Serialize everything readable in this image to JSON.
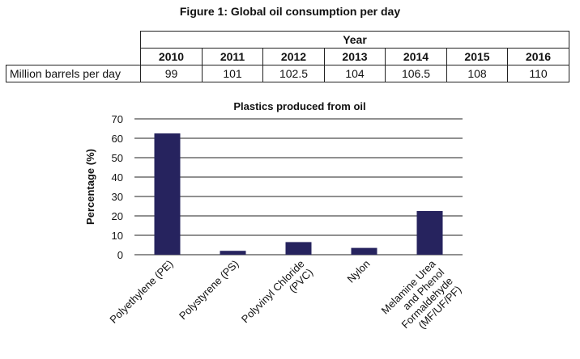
{
  "figure_title": "Figure 1: Global oil consumption per day",
  "table": {
    "group_header": "Year",
    "years": [
      "2010",
      "2011",
      "2012",
      "2013",
      "2014",
      "2015",
      "2016"
    ],
    "row_label": "Million barrels per day",
    "values": [
      "99",
      "101",
      "102.5",
      "104",
      "106.5",
      "108",
      "110"
    ]
  },
  "chart_data": {
    "type": "bar",
    "title": "Plastics produced from oil",
    "xlabel": "",
    "ylabel": "Percentage (%)",
    "ylim": [
      0,
      70
    ],
    "yticks": [
      0,
      10,
      20,
      30,
      40,
      50,
      60,
      70
    ],
    "grid": true,
    "categories": [
      [
        "Polyethylene (PE)"
      ],
      [
        "Polystyrene (PS)"
      ],
      [
        "Polyvinyl Chloride",
        "(PVC)"
      ],
      [
        "Nylon"
      ],
      [
        "Melamine Urea",
        "and Phenol",
        "Formaldehyde",
        "(MF/UF/PF)"
      ]
    ],
    "values": [
      62.5,
      2,
      6.5,
      3.5,
      22.5
    ],
    "colors": {
      "bar": "#26235e",
      "grid": "#222222"
    }
  }
}
